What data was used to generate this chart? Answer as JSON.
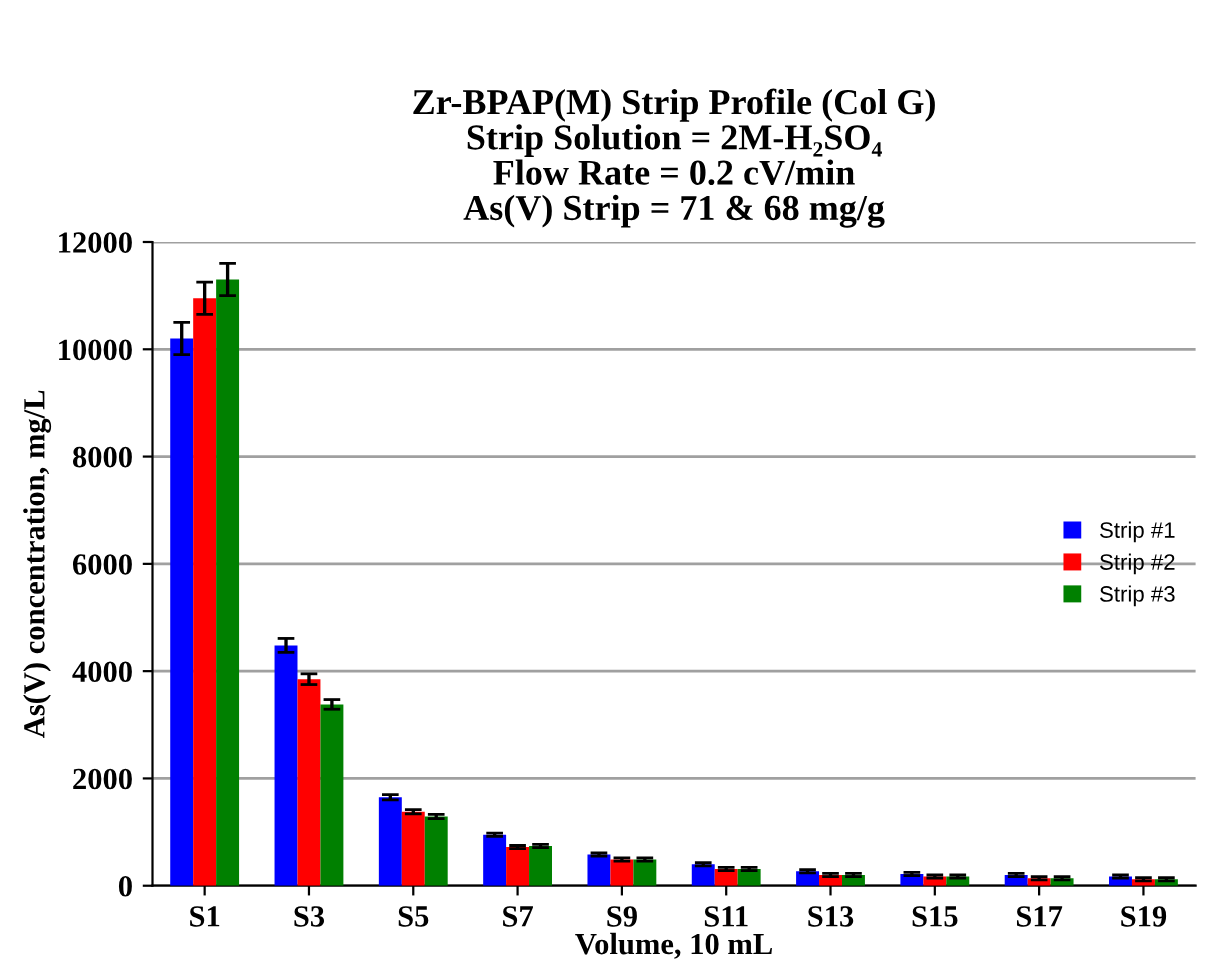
{
  "chart_data": {
    "type": "bar",
    "title": "Zr-BPAP(M) Strip Profile (Col G)\nStrip Solution = 2M-H₂SO₄\nFlow Rate = 0.2 cV/min\nAs(V) Strip = 71 & 68 mg/g",
    "xlabel": "Volume, 10 mL",
    "ylabel": "As(V) concentration, mg/L",
    "categories": [
      "S1",
      "S3",
      "S5",
      "S7",
      "S9",
      "S11",
      "S13",
      "S15",
      "S17",
      "S19"
    ],
    "series": [
      {
        "name": "Strip #1",
        "color": "#0000ff",
        "values": [
          10200,
          4480,
          1650,
          950,
          580,
          400,
          270,
          220,
          200,
          170
        ],
        "errors": [
          300,
          130,
          50,
          30,
          30,
          30,
          30,
          30,
          30,
          30
        ]
      },
      {
        "name": "Strip #2",
        "color": "#ff0000",
        "values": [
          10950,
          3850,
          1380,
          720,
          490,
          310,
          200,
          170,
          140,
          120
        ],
        "errors": [
          300,
          100,
          40,
          30,
          30,
          30,
          30,
          30,
          30,
          30
        ]
      },
      {
        "name": "Strip #3",
        "color": "#008000",
        "values": [
          11300,
          3380,
          1290,
          740,
          490,
          310,
          200,
          170,
          140,
          120
        ],
        "errors": [
          300,
          90,
          40,
          30,
          30,
          30,
          30,
          30,
          30,
          30
        ]
      }
    ],
    "ylim": [
      0,
      12000
    ],
    "yticks": [
      0,
      2000,
      4000,
      6000,
      8000,
      10000,
      12000
    ],
    "grid": "y",
    "legend": "right"
  }
}
